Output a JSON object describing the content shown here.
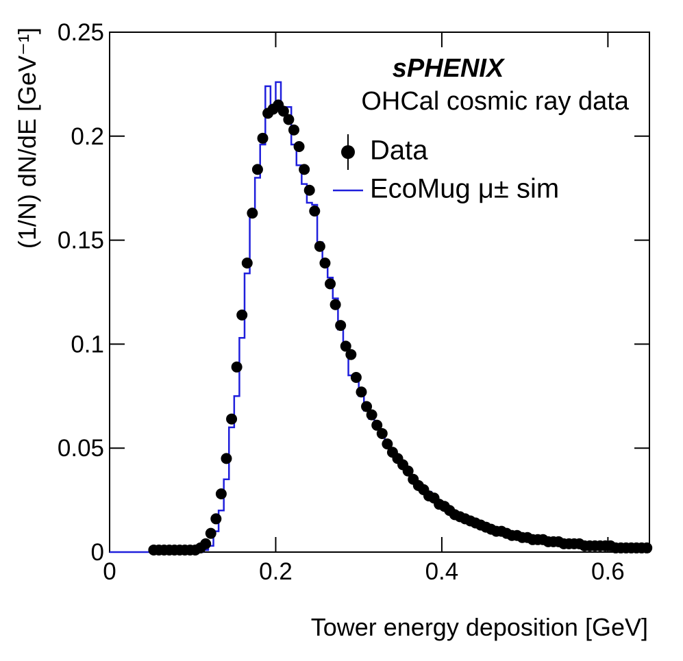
{
  "chart_data": {
    "type": "histogram",
    "title": "sPHENIX",
    "subtitle": "OHCal cosmic ray data",
    "xlabel": "Tower energy deposition [GeV]",
    "ylabel": "(1/N) dN/dE [GeV⁻¹]",
    "xlim": [
      0,
      0.65
    ],
    "ylim": [
      0,
      0.25
    ],
    "xticks": [
      0,
      0.2,
      0.4,
      0.6
    ],
    "yticks": [
      0,
      0.05,
      0.1,
      0.15,
      0.2,
      0.25
    ],
    "legend": "upper right",
    "x": [
      0.053125,
      0.059375,
      0.065625,
      0.071875,
      0.078125,
      0.084375,
      0.090625,
      0.096875,
      0.103125,
      0.109375,
      0.115625,
      0.121875,
      0.128125,
      0.134375,
      0.140625,
      0.146875,
      0.153125,
      0.159375,
      0.165625,
      0.171875,
      0.178125,
      0.184375,
      0.190625,
      0.196875,
      0.203125,
      0.209375,
      0.215625,
      0.221875,
      0.228125,
      0.234375,
      0.240625,
      0.246875,
      0.253125,
      0.259375,
      0.265625,
      0.271875,
      0.278125,
      0.284375,
      0.290625,
      0.296875,
      0.303125,
      0.309375,
      0.315625,
      0.321875,
      0.328125,
      0.334375,
      0.340625,
      0.346875,
      0.353125,
      0.359375,
      0.365625,
      0.371875,
      0.378125,
      0.384375,
      0.390625,
      0.396875,
      0.403125,
      0.409375,
      0.415625,
      0.421875,
      0.428125,
      0.434375,
      0.440625,
      0.446875,
      0.453125,
      0.459375,
      0.465625,
      0.471875,
      0.478125,
      0.484375,
      0.490625,
      0.496875,
      0.503125,
      0.509375,
      0.515625,
      0.521875,
      0.528125,
      0.534375,
      0.540625,
      0.546875,
      0.553125,
      0.559375,
      0.565625,
      0.571875,
      0.578125,
      0.584375,
      0.590625,
      0.596875,
      0.603125,
      0.609375,
      0.615625,
      0.621875,
      0.628125,
      0.634375,
      0.640625,
      0.646875
    ],
    "series": [
      {
        "name": "Data",
        "style": "markers",
        "color": "#000000",
        "values": [
          0.001,
          0.001,
          0.001,
          0.001,
          0.001,
          0.001,
          0.001,
          0.001,
          0.001,
          0.002,
          0.004,
          0.009,
          0.016,
          0.028,
          0.045,
          0.064,
          0.089,
          0.114,
          0.139,
          0.163,
          0.184,
          0.199,
          0.211,
          0.213,
          0.215,
          0.212,
          0.208,
          0.203,
          0.195,
          0.184,
          0.174,
          0.164,
          0.147,
          0.139,
          0.129,
          0.119,
          0.109,
          0.099,
          0.095,
          0.084,
          0.077,
          0.07,
          0.066,
          0.061,
          0.057,
          0.052,
          0.048,
          0.045,
          0.042,
          0.039,
          0.035,
          0.032,
          0.03,
          0.027,
          0.026,
          0.023,
          0.022,
          0.02,
          0.018,
          0.017,
          0.016,
          0.015,
          0.014,
          0.013,
          0.012,
          0.011,
          0.01,
          0.01,
          0.009,
          0.008,
          0.008,
          0.007,
          0.007,
          0.006,
          0.006,
          0.006,
          0.005,
          0.005,
          0.005,
          0.004,
          0.004,
          0.004,
          0.004,
          0.003,
          0.003,
          0.003,
          0.003,
          0.003,
          0.003,
          0.002,
          0.002,
          0.002,
          0.002,
          0.002,
          0.002,
          0.002
        ]
      },
      {
        "name": "EcoMug μ± sim",
        "style": "step",
        "color": "#1f1fdc",
        "values": [
          0,
          0,
          0,
          0,
          0,
          0,
          0,
          0,
          0,
          0,
          0.001,
          0.003,
          0.01,
          0.02,
          0.035,
          0.06,
          0.075,
          0.103,
          0.134,
          0.163,
          0.18,
          0.196,
          0.224,
          0.213,
          0.226,
          0.214,
          0.214,
          0.196,
          0.186,
          0.177,
          0.168,
          0.167,
          0.149,
          0.14,
          0.132,
          0.122,
          0.107,
          0.098,
          0.085,
          0.085,
          0.075,
          0.068,
          0.064,
          0.061,
          0.057,
          0.053,
          0.049,
          0.044,
          0.041,
          0.039,
          0.035,
          0.033,
          0.029,
          0.029,
          0.025,
          0.023,
          0.021,
          0.02,
          0.018,
          0.018,
          0.017,
          0.015,
          0.015,
          0.013,
          0.013,
          0.011,
          0.01,
          0.01,
          0.009,
          0.009,
          0.008,
          0.007,
          0.007,
          0.006,
          0.007,
          0.006,
          0.005,
          0.005,
          0.005,
          0.004,
          0.005,
          0.004,
          0.004,
          0.003,
          0.004,
          0.003,
          0.003,
          0.003,
          0.003,
          0.002,
          0.003,
          0.002,
          0.002,
          0.002,
          0.002,
          0.002
        ]
      }
    ]
  }
}
